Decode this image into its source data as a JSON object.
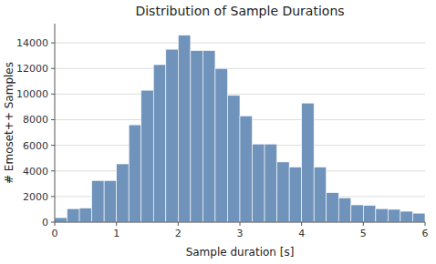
{
  "chart_data": {
    "type": "histogram",
    "title": "Distribution of Sample Durations",
    "x_label": "Sample duration [s]",
    "y_label": "# Emoset++ Samples",
    "bins": [
      0.0,
      0.2,
      0.4,
      0.6,
      0.8,
      1.0,
      1.2,
      1.4,
      1.6,
      1.8,
      2.0,
      2.2,
      2.4,
      2.6,
      2.8,
      3.0,
      3.2,
      3.4,
      3.6,
      3.8,
      4.0,
      4.2,
      4.4,
      4.6,
      4.8,
      5.0,
      5.2,
      5.4,
      5.6,
      5.8,
      6.0
    ],
    "values": [
      350,
      1050,
      1100,
      3250,
      3250,
      4550,
      7600,
      10300,
      12300,
      13500,
      14600,
      13400,
      13400,
      12000,
      9900,
      8300,
      6100,
      6100,
      4700,
      4300,
      9300,
      4300,
      2300,
      1900,
      1350,
      1300,
      1050,
      1000,
      850,
      700
    ],
    "color": "#6f93bb",
    "xlim": [
      0,
      6
    ],
    "ylim": [
      0,
      15500
    ],
    "xticks": [
      0,
      1,
      2,
      3,
      4,
      5,
      6
    ],
    "yticks": [
      0,
      2000,
      4000,
      6000,
      8000,
      10000,
      12000,
      14000
    ],
    "grid": true
  }
}
